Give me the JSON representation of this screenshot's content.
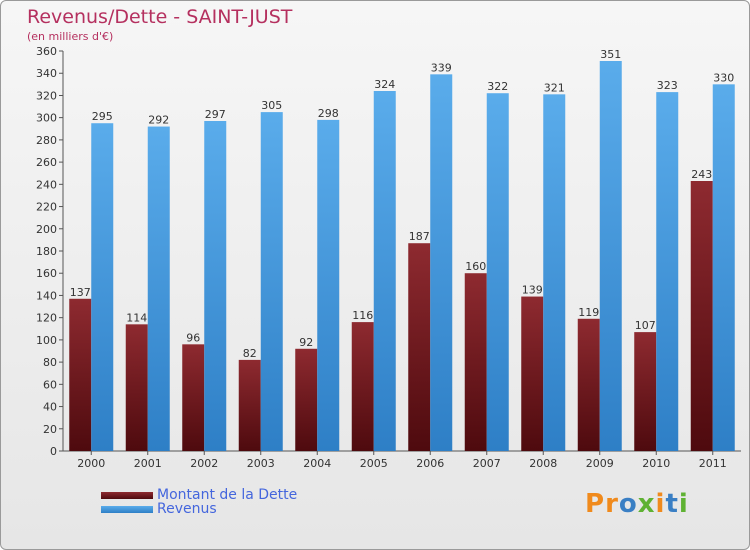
{
  "title": "Revenus/Dette - SAINT-JUST",
  "subtitle": "(en milliers d'€)",
  "logo_text": "Proxiti",
  "colors": {
    "dette": "#7a1a1f",
    "revenus": "#4fa3e3",
    "title": "#b5305f",
    "legend_text": "#4466dd",
    "logo": [
      "#f08a1c",
      "#f08a1c",
      "#3a7fc4",
      "#5fb233",
      "#f08a1c",
      "#3a7fc4",
      "#5fb233"
    ]
  },
  "chart_data": {
    "type": "bar",
    "categories": [
      "2000",
      "2001",
      "2002",
      "2003",
      "2004",
      "2005",
      "2006",
      "2007",
      "2008",
      "2009",
      "2010",
      "2011"
    ],
    "series": [
      {
        "name": "Montant de la Dette",
        "values": [
          137,
          114,
          96,
          82,
          92,
          116,
          187,
          160,
          139,
          119,
          107,
          243
        ]
      },
      {
        "name": "Revenus",
        "values": [
          295,
          292,
          297,
          305,
          298,
          324,
          339,
          322,
          321,
          351,
          323,
          330
        ]
      }
    ],
    "ylim": [
      0,
      360
    ],
    "yticks": [
      0,
      20,
      40,
      60,
      80,
      100,
      120,
      140,
      160,
      180,
      200,
      220,
      240,
      260,
      280,
      300,
      320,
      340,
      360
    ],
    "grid": false,
    "legend": "bottom-left"
  }
}
